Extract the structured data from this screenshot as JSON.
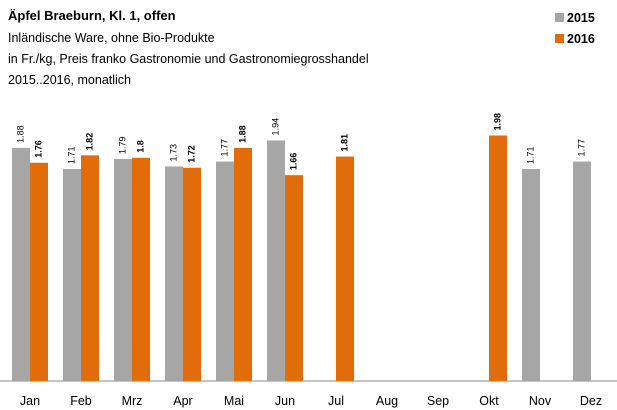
{
  "chart_data": {
    "type": "bar",
    "title": "Äpfel Braeburn, Kl. 1, offen",
    "subtitle": [
      "Inländische Ware, ohne Bio-Produkte",
      "in Fr./kg, Preis franko Gastronomie und Gastronomiegrosshandel",
      "2015..2016, monatlich"
    ],
    "categories": [
      "Jan",
      "Feb",
      "Mrz",
      "Apr",
      "Mai",
      "Jun",
      "Jul",
      "Aug",
      "Sep",
      "Okt",
      "Nov",
      "Dez"
    ],
    "series": [
      {
        "name": "2015",
        "color": "#a6a6a6",
        "values": [
          1.88,
          1.71,
          1.79,
          1.73,
          1.77,
          1.94,
          null,
          null,
          null,
          null,
          1.71,
          1.77
        ]
      },
      {
        "name": "2016",
        "color": "#e36c0a",
        "values": [
          1.76,
          1.82,
          1.8,
          1.72,
          1.88,
          1.66,
          1.81,
          null,
          null,
          1.98,
          null,
          null
        ]
      }
    ],
    "ylim": [
      0,
      2.5
    ],
    "legend": "top-right"
  }
}
